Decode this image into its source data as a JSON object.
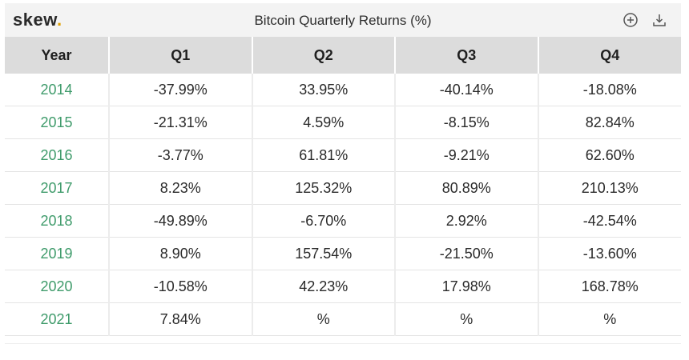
{
  "header": {
    "logo_text": "skew",
    "logo_dot": ".",
    "title": "Bitcoin Quarterly Returns (%)",
    "icons": [
      "plus-circle-icon",
      "download-icon"
    ]
  },
  "colors": {
    "year_text": "#3f9b6b",
    "header_bg": "#dcdcdc",
    "logo_dot": "#e0a100"
  },
  "chart_data": {
    "type": "table",
    "title": "Bitcoin Quarterly Returns (%)",
    "columns": [
      "Year",
      "Q1",
      "Q2",
      "Q3",
      "Q4"
    ],
    "rows": [
      [
        "2014",
        "-37.99%",
        "33.95%",
        "-40.14%",
        "-18.08%"
      ],
      [
        "2015",
        "-21.31%",
        "4.59%",
        "-8.15%",
        "82.84%"
      ],
      [
        "2016",
        "-3.77%",
        "61.81%",
        "-9.21%",
        "62.60%"
      ],
      [
        "2017",
        "8.23%",
        "125.32%",
        "80.89%",
        "210.13%"
      ],
      [
        "2018",
        "-49.89%",
        "-6.70%",
        "2.92%",
        "-42.54%"
      ],
      [
        "2019",
        "8.90%",
        "157.54%",
        "-21.50%",
        "-13.60%"
      ],
      [
        "2020",
        "-10.58%",
        "42.23%",
        "17.98%",
        "168.78%"
      ],
      [
        "2021",
        "7.84%",
        "%",
        "%",
        "%"
      ]
    ]
  }
}
